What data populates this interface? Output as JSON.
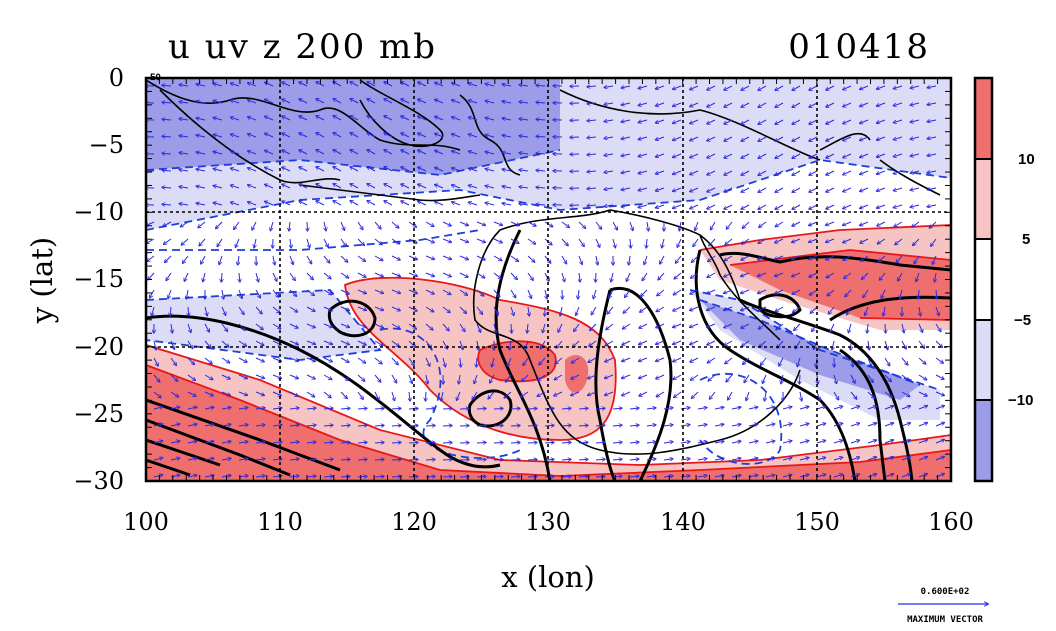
{
  "title_left": "u uv z 200 mb",
  "title_right": "010418",
  "xlabel": "x (lon)",
  "ylabel": "y (lat)",
  "x_ticks": [
    "100",
    "110",
    "120",
    "130",
    "140",
    "150",
    "160"
  ],
  "y_ticks": [
    "0",
    "−5",
    "−10",
    "−15",
    "−20",
    "−25",
    "−30"
  ],
  "x_range": [
    100,
    160
  ],
  "y_range": [
    -30,
    0
  ],
  "corner_label": "EQ",
  "colorbar": {
    "labels": [
      "10",
      "5",
      "−5",
      "−10"
    ],
    "bands": [
      "#ef6e6e",
      "#f7c4c4",
      "#ffffff",
      "#dcdcf6",
      "#9c9ce8"
    ]
  },
  "vector_key": {
    "value": "0.600E+02",
    "caption": "MAXIMUM VECTOR"
  },
  "colors": {
    "positive_contour": "#e81818",
    "negative_contour": "#1f3fd8",
    "height_contour": "#000000",
    "vector": "#2a2ae0"
  }
}
